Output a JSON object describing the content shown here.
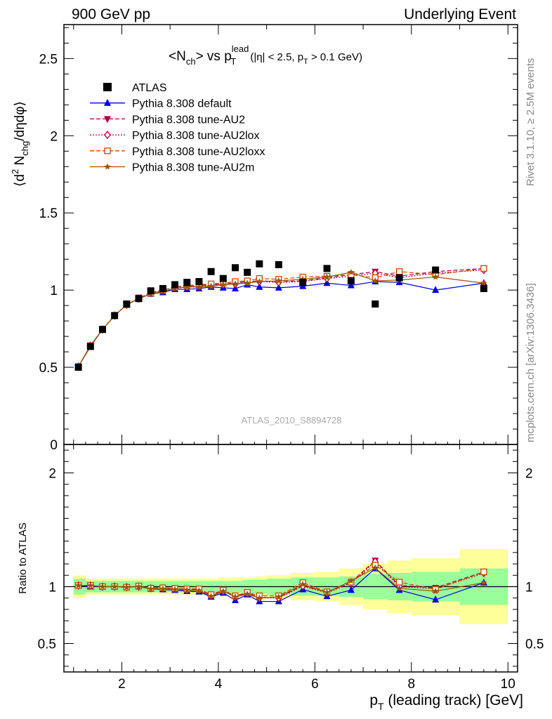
{
  "header": {
    "left": "900 GeV pp",
    "right": "Underlying Event"
  },
  "side_labels": {
    "rivet": "Rivet 3.1.10, ≥ 2.5M events",
    "mcplots": "mcplots.cern.ch [arXiv:1306.3436]"
  },
  "legend": [
    {
      "label": "ATLAS",
      "color": "#000000",
      "marker": "square",
      "dash": "none"
    },
    {
      "label": "Pythia 8.308 default",
      "color": "#0000dd",
      "marker": "triangle-up",
      "dash": "solid"
    },
    {
      "label": "Pythia 8.308 tune-AU2",
      "color": "#aa0044",
      "marker": "triangle-down",
      "dash": "dashed"
    },
    {
      "label": "Pythia 8.308 tune-AU2lox",
      "color": "#b0003a",
      "marker": "diamond-open",
      "dash": "dotted"
    },
    {
      "label": "Pythia 8.308 tune-AU2loxx",
      "color": "#cc4400",
      "marker": "square-open",
      "dash": "dashed"
    },
    {
      "label": "Pythia 8.308 tune-AU2m",
      "color": "#995500",
      "marker": "star",
      "dash": "solid"
    }
  ],
  "colors": {
    "band_inner": "#99ff99",
    "band_outer": "#ffff99"
  },
  "chart_data": [
    {
      "type": "scatter",
      "title": "<N_ch> vs p_T^lead (|η| < 2.5, p_T > 0.1 GeV)",
      "title_parts": {
        "main": "<N",
        "sub1": "ch",
        "mid": "> vs p",
        "sup": "lead",
        "sub2": "T",
        "cond": "(|η| < 2.5, p",
        "cond_sub": "T",
        "cond_end": " > 0.1 GeV)"
      },
      "ylabel": "⟨d² N_chg/dηdφ⟩",
      "ylabel_parts": {
        "a": "⟨d",
        "sup": "2",
        "b": " N",
        "sub": "chg",
        "c": "/dηdφ⟩"
      },
      "watermark": "ATLAS_2010_S8894728",
      "xlim": [
        0.8,
        10.2
      ],
      "ylim": [
        0,
        2.72
      ],
      "yticks": [
        0,
        0.5,
        1,
        1.5,
        2,
        2.5
      ],
      "ytick_labels": [
        "0",
        "0.5",
        "1",
        "1.5",
        "2",
        "2.5"
      ],
      "x": [
        1.1,
        1.35,
        1.6,
        1.85,
        2.1,
        2.35,
        2.6,
        2.85,
        3.1,
        3.35,
        3.6,
        3.85,
        4.1,
        4.35,
        4.6,
        4.85,
        5.25,
        5.75,
        6.25,
        6.75,
        7.25,
        7.75,
        8.5,
        9.5
      ],
      "series": [
        {
          "name": "ATLAS",
          "values": [
            0.5,
            0.635,
            0.745,
            0.835,
            0.91,
            0.945,
            0.995,
            1.01,
            1.035,
            1.05,
            1.055,
            1.12,
            1.075,
            1.145,
            1.115,
            1.17,
            1.165,
            1.05,
            1.14,
            1.06,
            0.91,
            1.08,
            1.13,
            1.01
          ]
        },
        {
          "name": "Pythia 8.308 default",
          "values": [
            0.505,
            0.635,
            0.745,
            0.835,
            0.905,
            0.945,
            0.975,
            0.985,
            1.005,
            1.005,
            1.01,
            1.02,
            1.015,
            1.01,
            1.035,
            1.02,
            1.015,
            1.025,
            1.045,
            1.03,
            1.055,
            1.05,
            1.0,
            1.045
          ]
        },
        {
          "name": "Pythia 8.308 tune-AU2",
          "values": [
            0.505,
            0.64,
            0.745,
            0.835,
            0.905,
            0.945,
            0.985,
            1.0,
            1.02,
            1.025,
            1.03,
            1.035,
            1.04,
            1.045,
            1.055,
            1.06,
            1.055,
            1.06,
            1.08,
            1.1,
            1.12,
            1.09,
            1.12,
            1.14
          ]
        },
        {
          "name": "Pythia 8.308 tune-AU2lox",
          "values": [
            0.505,
            0.64,
            0.745,
            0.835,
            0.905,
            0.945,
            0.98,
            0.995,
            1.015,
            1.02,
            1.025,
            1.03,
            1.035,
            1.04,
            1.05,
            1.055,
            1.05,
            1.055,
            1.075,
            1.09,
            1.11,
            1.08,
            1.11,
            1.13
          ]
        },
        {
          "name": "Pythia 8.308 tune-AU2loxx",
          "values": [
            0.505,
            0.64,
            0.745,
            0.835,
            0.905,
            0.95,
            0.98,
            1.0,
            1.02,
            1.03,
            1.035,
            1.04,
            1.045,
            1.055,
            1.06,
            1.075,
            1.07,
            1.085,
            1.09,
            1.1,
            1.08,
            1.12,
            1.1,
            1.14
          ]
        },
        {
          "name": "Pythia 8.308 tune-AU2m",
          "values": [
            0.505,
            0.64,
            0.745,
            0.835,
            0.905,
            0.945,
            0.975,
            0.99,
            1.01,
            1.02,
            1.02,
            1.025,
            1.035,
            1.04,
            1.045,
            1.055,
            1.06,
            1.07,
            1.085,
            1.115,
            1.06,
            1.065,
            1.085,
            1.045
          ]
        }
      ]
    },
    {
      "type": "scatter",
      "xlabel": "p_T (leading track) [GeV]",
      "xlabel_parts": {
        "a": "p",
        "sub": "T",
        "b": " (leading track) [GeV]"
      },
      "ylabel": "Ratio to ATLAS",
      "xlim": [
        0.8,
        10.2
      ],
      "ylim": [
        0.25,
        2.25
      ],
      "xticks": [
        2,
        4,
        6,
        8,
        10
      ],
      "xtick_labels": [
        "2",
        "4",
        "6",
        "8",
        "10"
      ],
      "yticks": [
        0.5,
        1,
        2
      ],
      "ytick_labels": [
        "0.5",
        "1",
        "2"
      ],
      "x": [
        1.1,
        1.35,
        1.6,
        1.85,
        2.1,
        2.35,
        2.6,
        2.85,
        3.1,
        3.35,
        3.6,
        3.85,
        4.1,
        4.35,
        4.6,
        4.85,
        5.25,
        5.75,
        6.25,
        6.75,
        7.25,
        7.75,
        8.5,
        9.5
      ],
      "bin_edges": [
        1.0,
        1.25,
        1.5,
        1.75,
        2.0,
        2.25,
        2.5,
        2.75,
        3.0,
        3.25,
        3.5,
        3.75,
        4.0,
        4.25,
        4.5,
        4.75,
        5.0,
        5.5,
        6.0,
        6.5,
        7.0,
        7.5,
        8.0,
        9.0,
        10.0
      ],
      "band_inner": [
        0.07,
        0.05,
        0.05,
        0.05,
        0.05,
        0.05,
        0.05,
        0.05,
        0.05,
        0.05,
        0.05,
        0.05,
        0.05,
        0.05,
        0.06,
        0.06,
        0.07,
        0.08,
        0.08,
        0.09,
        0.11,
        0.12,
        0.13,
        0.16
      ],
      "band_outer": [
        0.1,
        0.07,
        0.07,
        0.07,
        0.07,
        0.07,
        0.07,
        0.07,
        0.07,
        0.07,
        0.07,
        0.07,
        0.08,
        0.08,
        0.08,
        0.09,
        0.1,
        0.12,
        0.13,
        0.16,
        0.2,
        0.23,
        0.25,
        0.33
      ],
      "series": [
        {
          "name": "Pythia 8.308 default",
          "values": [
            1.01,
            1.0,
            1.0,
            1.0,
            0.995,
            1.0,
            0.98,
            0.975,
            0.97,
            0.96,
            0.955,
            0.91,
            0.945,
            0.88,
            0.93,
            0.87,
            0.87,
            0.975,
            0.915,
            0.97,
            1.16,
            0.97,
            0.885,
            1.035
          ]
        },
        {
          "name": "Pythia 8.308 tune-AU2",
          "values": [
            1.01,
            1.01,
            1.0,
            1.0,
            0.995,
            1.0,
            0.99,
            0.99,
            0.985,
            0.975,
            0.975,
            0.925,
            0.965,
            0.915,
            0.945,
            0.905,
            0.905,
            1.01,
            0.95,
            1.04,
            1.23,
            1.01,
            0.99,
            1.13
          ]
        },
        {
          "name": "Pythia 8.308 tune-AU2lox",
          "values": [
            1.01,
            1.01,
            1.0,
            1.0,
            0.995,
            1.0,
            0.985,
            0.985,
            0.98,
            0.97,
            0.97,
            0.92,
            0.96,
            0.91,
            0.94,
            0.9,
            0.9,
            1.005,
            0.945,
            1.03,
            1.22,
            1.0,
            0.98,
            1.12
          ]
        },
        {
          "name": "Pythia 8.308 tune-AU2loxx",
          "values": [
            1.01,
            1.01,
            1.0,
            1.0,
            0.995,
            1.005,
            0.985,
            0.99,
            0.985,
            0.98,
            0.98,
            0.93,
            0.97,
            0.92,
            0.95,
            0.92,
            0.92,
            1.035,
            0.955,
            1.04,
            1.19,
            1.04,
            0.975,
            1.13
          ]
        },
        {
          "name": "Pythia 8.308 tune-AU2m",
          "values": [
            1.01,
            1.01,
            1.0,
            1.0,
            0.995,
            1.0,
            0.98,
            0.98,
            0.975,
            0.97,
            0.965,
            0.915,
            0.96,
            0.91,
            0.935,
            0.9,
            0.91,
            1.02,
            0.95,
            1.05,
            1.165,
            0.985,
            0.96,
            1.035
          ]
        }
      ]
    }
  ]
}
